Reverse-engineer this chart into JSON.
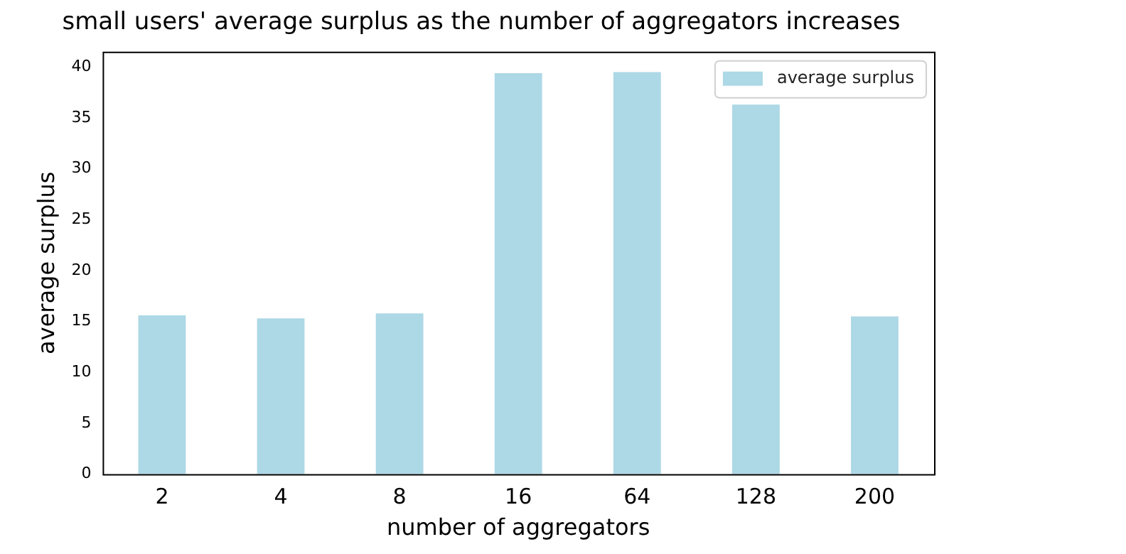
{
  "chart_data": {
    "type": "bar",
    "title": "small users' average surplus as the number of aggregators increases",
    "xlabel": "number of aggregators",
    "ylabel": "average surplus",
    "categories": [
      "2",
      "4",
      "8",
      "16",
      "64",
      "128",
      "200"
    ],
    "series": [
      {
        "name": "average surplus",
        "color": "#add8e6",
        "values": [
          15.6,
          15.3,
          15.8,
          39.4,
          39.5,
          36.3,
          15.5
        ]
      }
    ],
    "ylim": [
      0,
      41.5
    ],
    "yticks": [
      0,
      5,
      10,
      15,
      20,
      25,
      30,
      35,
      40
    ],
    "grid": false,
    "legend": "top right"
  }
}
